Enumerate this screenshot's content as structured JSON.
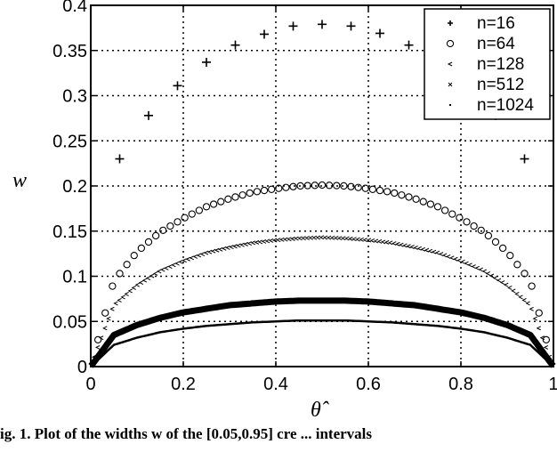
{
  "figure": {
    "caption_partial": "ig. 1.  Plot of the widths w of the [0.05,0.95] cre  ... intervals"
  },
  "chart_data": {
    "type": "scatter",
    "title": "",
    "xlabel": "θ̂",
    "ylabel": "w",
    "xlim": [
      0,
      1
    ],
    "ylim": [
      0,
      0.4
    ],
    "xticks": [
      0,
      0.2,
      0.4,
      0.6,
      0.8,
      1
    ],
    "xtick_labels": [
      "0",
      "0.2",
      "0.4",
      "0.6",
      "0.8",
      "1"
    ],
    "yticks": [
      0,
      0.05,
      0.1,
      0.15,
      0.2,
      0.25,
      0.3,
      0.35,
      0.4
    ],
    "ytick_labels": [
      "0",
      "0.05",
      "0.1",
      "0.15",
      "0.2",
      "0.25",
      "0.3",
      "0.35",
      "0.4"
    ],
    "grid": true,
    "legend_position": "upper right",
    "series": [
      {
        "name": "n=16",
        "marker": "+",
        "x": [
          0.0625,
          0.125,
          0.1875,
          0.25,
          0.3125,
          0.375,
          0.4375,
          0.5,
          0.5625,
          0.625,
          0.6875,
          0.75,
          0.8125,
          0.875,
          0.9375
        ],
        "values": [
          0.23,
          0.278,
          0.311,
          0.337,
          0.356,
          0.368,
          0.377,
          0.379,
          0.377,
          0.369,
          0.356,
          0.337,
          0.311,
          0.278,
          0.23
        ]
      },
      {
        "name": "n=64",
        "marker": "o",
        "points": 63,
        "x": [
          0,
          0.05,
          0.1,
          0.15,
          0.2,
          0.25,
          0.3,
          0.35,
          0.4,
          0.45,
          0.5,
          0.55,
          0.6,
          0.65,
          0.7,
          0.75,
          0.8,
          0.85,
          0.9,
          0.95,
          1
        ],
        "values": [
          0,
          0.095,
          0.127,
          0.149,
          0.164,
          0.177,
          0.186,
          0.193,
          0.197,
          0.2,
          0.201,
          0.2,
          0.197,
          0.193,
          0.186,
          0.177,
          0.164,
          0.149,
          0.127,
          0.095,
          0
        ]
      },
      {
        "name": "n=128",
        "marker": "<",
        "points": 127,
        "x": [
          0,
          0.05,
          0.1,
          0.15,
          0.2,
          0.25,
          0.3,
          0.35,
          0.4,
          0.45,
          0.5,
          0.55,
          0.6,
          0.65,
          0.7,
          0.75,
          0.8,
          0.85,
          0.9,
          0.95,
          1
        ],
        "values": [
          0,
          0.068,
          0.09,
          0.106,
          0.117,
          0.126,
          0.132,
          0.137,
          0.14,
          0.142,
          0.143,
          0.142,
          0.14,
          0.137,
          0.132,
          0.126,
          0.117,
          0.106,
          0.09,
          0.068,
          0
        ]
      },
      {
        "name": "n=512",
        "marker": "x",
        "points": 511,
        "x": [
          0,
          0.05,
          0.1,
          0.15,
          0.2,
          0.25,
          0.3,
          0.35,
          0.4,
          0.45,
          0.5,
          0.55,
          0.6,
          0.65,
          0.7,
          0.75,
          0.8,
          0.85,
          0.9,
          0.95,
          1
        ],
        "values": [
          0,
          0.035,
          0.046,
          0.054,
          0.06,
          0.064,
          0.068,
          0.07,
          0.072,
          0.073,
          0.073,
          0.073,
          0.072,
          0.07,
          0.068,
          0.064,
          0.06,
          0.054,
          0.046,
          0.035,
          0
        ]
      },
      {
        "name": "n=1024",
        "marker": ".",
        "points": 1023,
        "x": [
          0,
          0.05,
          0.1,
          0.15,
          0.2,
          0.25,
          0.3,
          0.35,
          0.4,
          0.45,
          0.5,
          0.55,
          0.6,
          0.65,
          0.7,
          0.75,
          0.8,
          0.85,
          0.9,
          0.95,
          1
        ],
        "values": [
          0,
          0.024,
          0.032,
          0.038,
          0.042,
          0.045,
          0.047,
          0.049,
          0.05,
          0.051,
          0.051,
          0.051,
          0.05,
          0.049,
          0.047,
          0.045,
          0.042,
          0.038,
          0.032,
          0.024,
          0
        ]
      }
    ]
  },
  "colors": {
    "ink": "#000000",
    "background": "#ffffff"
  }
}
